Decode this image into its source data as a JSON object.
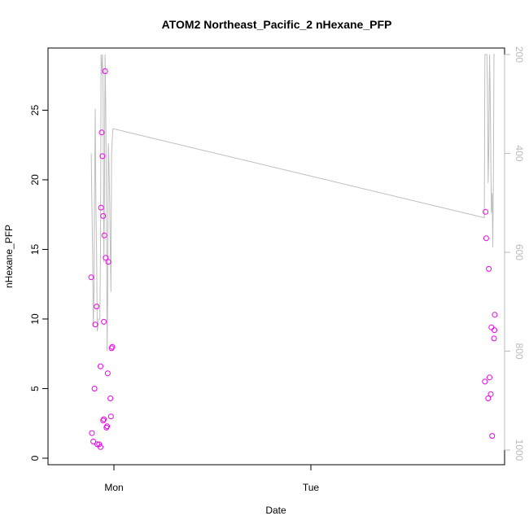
{
  "chart_data": {
    "type": "scatter",
    "title": "ATOM2 Northeast_Pacific_2 nHexane_PFP",
    "xlabel": "Date",
    "ylabel": "nHexane_PFP",
    "x_ticks": [
      "Mon",
      "Tue"
    ],
    "ylim": [
      0,
      29
    ],
    "y_ticks": [
      0,
      5,
      10,
      15,
      20,
      25
    ],
    "y2_ticks": [
      200,
      400,
      600,
      800,
      1000
    ],
    "y2_reversed": true,
    "grid": false,
    "legend": "none",
    "colors": {
      "points": "#ee00ee",
      "line": "#bebebe",
      "axis": "#000000",
      "right_axis": "#bbbbbb"
    },
    "points": [
      {
        "x": "Sun 21:14",
        "y": 13.0
      },
      {
        "x": "Sun 21:19",
        "y": 1.8
      },
      {
        "x": "Sun 21:29",
        "y": 1.2
      },
      {
        "x": "Sun 21:38",
        "y": 5.0
      },
      {
        "x": "Sun 21:43",
        "y": 9.6
      },
      {
        "x": "Sun 21:53",
        "y": 10.9
      },
      {
        "x": "Sun 21:58",
        "y": 1.0
      },
      {
        "x": "Sun 22:12",
        "y": 1.0
      },
      {
        "x": "Sun 22:22",
        "y": 0.8
      },
      {
        "x": "Sun 22:22",
        "y": 6.6
      },
      {
        "x": "Sun 22:26",
        "y": 18.0
      },
      {
        "x": "Sun 22:31",
        "y": 23.4
      },
      {
        "x": "Sun 22:36",
        "y": 21.7
      },
      {
        "x": "Sun 22:41",
        "y": 17.4
      },
      {
        "x": "Sun 22:41",
        "y": 2.7
      },
      {
        "x": "Sun 22:46",
        "y": 2.8
      },
      {
        "x": "Sun 22:46",
        "y": 9.8
      },
      {
        "x": "Sun 22:50",
        "y": 16.0
      },
      {
        "x": "Sun 22:55",
        "y": 27.8
      },
      {
        "x": "Sun 23:00",
        "y": 14.4
      },
      {
        "x": "Sun 23:05",
        "y": 2.2
      },
      {
        "x": "Sun 23:10",
        "y": 2.3
      },
      {
        "x": "Sun 23:14",
        "y": 6.1
      },
      {
        "x": "Sun 23:19",
        "y": 14.1
      },
      {
        "x": "Sun 23:34",
        "y": 4.3
      },
      {
        "x": "Sun 23:38",
        "y": 3.0
      },
      {
        "x": "Sun 23:43",
        "y": 7.9
      },
      {
        "x": "Sun 23:48",
        "y": 8.0
      },
      {
        "x": "Tue 21:12",
        "y": 5.5
      },
      {
        "x": "Tue 21:17",
        "y": 17.7
      },
      {
        "x": "Tue 21:22",
        "y": 15.8
      },
      {
        "x": "Tue 21:36",
        "y": 4.3
      },
      {
        "x": "Tue 21:41",
        "y": 13.6
      },
      {
        "x": "Tue 21:46",
        "y": 5.8
      },
      {
        "x": "Tue 21:55",
        "y": 4.6
      },
      {
        "x": "Tue 22:00",
        "y": 9.4
      },
      {
        "x": "Tue 22:05",
        "y": 1.6
      },
      {
        "x": "Tue 22:19",
        "y": 8.6
      },
      {
        "x": "Tue 22:22",
        "y": 9.2
      },
      {
        "x": "Tue 22:24",
        "y": 10.3
      }
    ],
    "altitude_series": {
      "name": "",
      "axis": "right",
      "points": [
        {
          "x": "Sun 21:14",
          "y2": 400
        },
        {
          "x": "Sun 21:19",
          "y2": 500
        },
        {
          "x": "Sun 21:24",
          "y2": 600
        },
        {
          "x": "Sun 21:29",
          "y2": 750
        },
        {
          "x": "Sun 21:34",
          "y2": 680
        },
        {
          "x": "Sun 21:38",
          "y2": 510
        },
        {
          "x": "Sun 21:43",
          "y2": 310
        },
        {
          "x": "Sun 21:48",
          "y2": 500
        },
        {
          "x": "Sun 21:53",
          "y2": 600
        },
        {
          "x": "Sun 21:58",
          "y2": 760
        },
        {
          "x": "Sun 22:03",
          "y2": 750
        },
        {
          "x": "Sun 22:08",
          "y2": 735
        },
        {
          "x": "Sun 22:12",
          "y2": 735
        },
        {
          "x": "Sun 22:17",
          "y2": 735
        },
        {
          "x": "Sun 22:22",
          "y2": 600
        },
        {
          "x": "Sun 22:26",
          "y2": 200
        },
        {
          "x": "Sun 22:31",
          "y2": 240
        },
        {
          "x": "Sun 22:36",
          "y2": 200
        },
        {
          "x": "Sun 22:41",
          "y2": 280
        },
        {
          "x": "Sun 22:46",
          "y2": 620
        },
        {
          "x": "Sun 22:50",
          "y2": 520
        },
        {
          "x": "Sun 22:55",
          "y2": 200
        },
        {
          "x": "Sun 23:00",
          "y2": 300
        },
        {
          "x": "Sun 23:05",
          "y2": 500
        },
        {
          "x": "Sun 23:10",
          "y2": 800
        },
        {
          "x": "Sun 23:14",
          "y2": 700
        },
        {
          "x": "Sun 23:19",
          "y2": 380
        },
        {
          "x": "Sun 23:24",
          "y2": 420
        },
        {
          "x": "Sun 23:29",
          "y2": 500
        },
        {
          "x": "Sun 23:34",
          "y2": 600
        },
        {
          "x": "Sun 23:38",
          "y2": 680
        },
        {
          "x": "Sun 23:43",
          "y2": 400
        },
        {
          "x": "Sun 23:48",
          "y2": 370
        },
        {
          "x": "Sun 23:53",
          "y2": 350
        },
        {
          "x": "Tue 21:08",
          "y2": 530
        },
        {
          "x": "Tue 21:12",
          "y2": 200
        },
        {
          "x": "Tue 21:17",
          "y2": 200
        },
        {
          "x": "Tue 21:22",
          "y2": 200
        },
        {
          "x": "Tue 21:27",
          "y2": 200
        },
        {
          "x": "Tue 21:31",
          "y2": 280
        },
        {
          "x": "Tue 21:36",
          "y2": 460
        },
        {
          "x": "Tue 21:41",
          "y2": 390
        },
        {
          "x": "Tue 21:46",
          "y2": 200
        },
        {
          "x": "Tue 21:50",
          "y2": 260
        },
        {
          "x": "Tue 21:55",
          "y2": 400
        },
        {
          "x": "Tue 22:00",
          "y2": 520
        },
        {
          "x": "Tue 22:05",
          "y2": 480
        },
        {
          "x": "Tue 22:10",
          "y2": 590
        },
        {
          "x": "Tue 22:14",
          "y2": 460
        },
        {
          "x": "Tue 22:19",
          "y2": 200
        },
        {
          "x": "Tue 22:24",
          "y2": 200
        }
      ]
    }
  }
}
